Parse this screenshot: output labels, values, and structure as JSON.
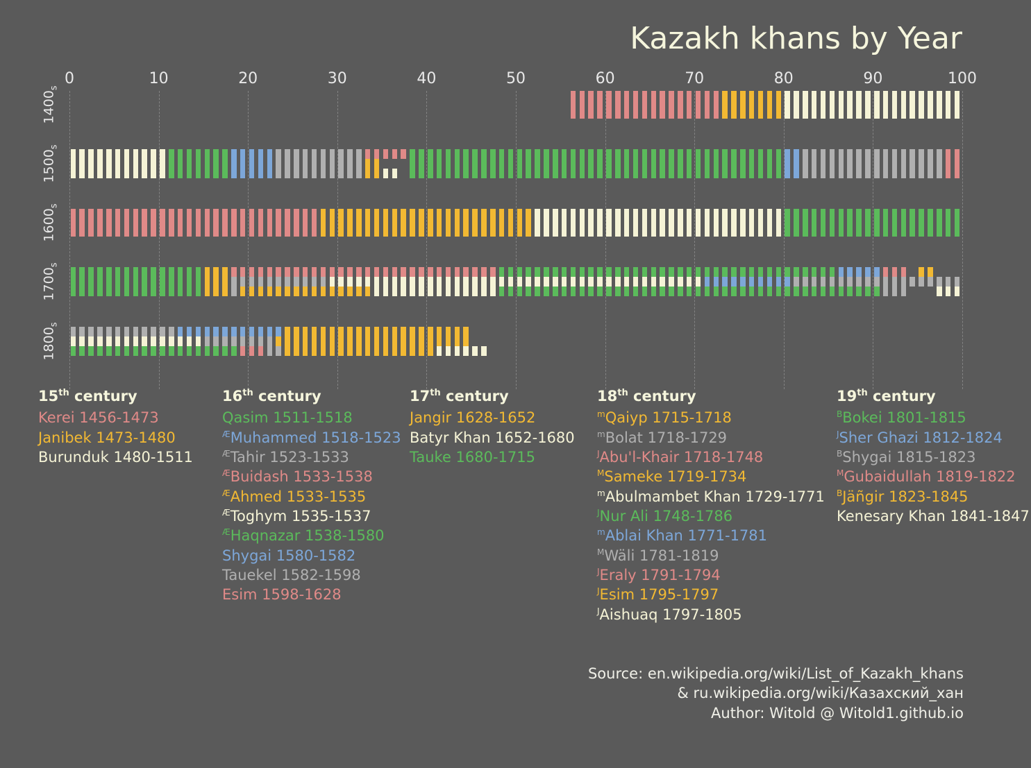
{
  "title": "Kazakh khans by Year",
  "background_color": "#5a5a5a",
  "text_color": "#f5f5dc",
  "colors": {
    "red": "#e08a88",
    "yellow": "#f2b933",
    "cream": "#f5f3d6",
    "green": "#5bbb5b",
    "blue": "#7da7d9",
    "gray": "#b0b0b0"
  },
  "x_axis": {
    "ticks": [
      0,
      10,
      20,
      30,
      40,
      50,
      60,
      70,
      80,
      90,
      100
    ],
    "xlim": [
      0,
      100
    ],
    "fontsize": 22,
    "grid_color": "#b5b5b5",
    "grid_dash": true
  },
  "rows": [
    {
      "label": "1400",
      "sub": "s",
      "tracks": [
        [
          {
            "start": 56,
            "end": 73,
            "color": "red"
          },
          {
            "start": 73,
            "end": 80,
            "color": "yellow"
          },
          {
            "start": 80,
            "end": 100,
            "color": "cream"
          }
        ]
      ]
    },
    {
      "label": "1500",
      "sub": "s",
      "tracks": [
        [
          {
            "start": 0,
            "end": 11,
            "color": "cream"
          },
          {
            "start": 11,
            "end": 18,
            "color": "green"
          },
          {
            "start": 18,
            "end": 23,
            "color": "blue"
          },
          {
            "start": 23,
            "end": 33,
            "color": "gray"
          },
          {
            "start": 33,
            "end": 35,
            "color": "yellow"
          },
          {
            "start": 33,
            "end": 38,
            "color": "red",
            "sub": "top"
          },
          {
            "start": 35,
            "end": 37,
            "color": "cream",
            "sub": "bot"
          },
          {
            "start": 38,
            "end": 80,
            "color": "green"
          },
          {
            "start": 80,
            "end": 82,
            "color": "blue"
          },
          {
            "start": 82,
            "end": 98,
            "color": "gray"
          },
          {
            "start": 98,
            "end": 100,
            "color": "red"
          }
        ]
      ]
    },
    {
      "label": "1600",
      "sub": "s",
      "tracks": [
        [
          {
            "start": 0,
            "end": 28,
            "color": "red"
          },
          {
            "start": 28,
            "end": 52,
            "color": "yellow"
          },
          {
            "start": 52,
            "end": 80,
            "color": "cream"
          },
          {
            "start": 80,
            "end": 100,
            "color": "green"
          }
        ]
      ]
    },
    {
      "label": "1700",
      "sub": "s",
      "tracks": [
        [
          {
            "start": 0,
            "end": 15,
            "color": "green"
          },
          {
            "start": 15,
            "end": 18,
            "color": "yellow"
          },
          {
            "start": 18,
            "end": 29,
            "color": "gray"
          },
          {
            "start": 29,
            "end": 71,
            "color": "cream",
            "sub": "mid"
          },
          {
            "start": 18,
            "end": 48,
            "color": "red",
            "sub": "top"
          },
          {
            "start": 19,
            "end": 34,
            "color": "yellow",
            "sub": "bot"
          },
          {
            "start": 34,
            "end": 48,
            "color": "cream",
            "sub": "bot"
          },
          {
            "start": 48,
            "end": 56,
            "color": "green",
            "sub": "top"
          },
          {
            "start": 48,
            "end": 56,
            "color": "green",
            "sub": "bot"
          },
          {
            "start": 56,
            "end": 79,
            "color": "green",
            "sub": "top"
          },
          {
            "start": 56,
            "end": 79,
            "color": "green",
            "sub": "bot"
          },
          {
            "start": 71,
            "end": 81,
            "color": "blue"
          },
          {
            "start": 79,
            "end": 86,
            "color": "green",
            "sub": "top"
          },
          {
            "start": 79,
            "end": 86,
            "color": "green",
            "sub": "bot"
          },
          {
            "start": 81,
            "end": 100,
            "color": "gray",
            "sub": "mid"
          },
          {
            "start": 86,
            "end": 91,
            "color": "blue",
            "sub": "top"
          },
          {
            "start": 86,
            "end": 91,
            "color": "green",
            "sub": "bot"
          },
          {
            "start": 91,
            "end": 94,
            "color": "red",
            "sub": "top"
          },
          {
            "start": 91,
            "end": 94,
            "color": "gray",
            "sub": "bot"
          },
          {
            "start": 95,
            "end": 97,
            "color": "yellow",
            "sub": "top"
          },
          {
            "start": 97,
            "end": 100,
            "color": "cream",
            "sub": "bot"
          }
        ]
      ]
    },
    {
      "label": "1800",
      "sub": "s",
      "tracks": [
        [
          {
            "start": 0,
            "end": 5,
            "color": "gray",
            "sub": "top"
          },
          {
            "start": 0,
            "end": 5,
            "color": "cream",
            "sub": "mid"
          },
          {
            "start": 0,
            "end": 5,
            "color": "green",
            "sub": "bot"
          },
          {
            "start": 1,
            "end": 15,
            "color": "gray",
            "sub": "top"
          },
          {
            "start": 1,
            "end": 15,
            "color": "green",
            "sub": "bot"
          },
          {
            "start": 5,
            "end": 19,
            "color": "cream",
            "sub": "mid"
          },
          {
            "start": 12,
            "end": 24,
            "color": "blue",
            "sub": "top"
          },
          {
            "start": 15,
            "end": 23,
            "color": "gray",
            "sub": "mid"
          },
          {
            "start": 15,
            "end": 19,
            "color": "green",
            "sub": "bot"
          },
          {
            "start": 19,
            "end": 22,
            "color": "red",
            "sub": "bot"
          },
          {
            "start": 22,
            "end": 24,
            "color": "gray",
            "sub": "bot"
          },
          {
            "start": 23,
            "end": 45,
            "color": "yellow"
          },
          {
            "start": 41,
            "end": 47,
            "color": "cream",
            "sub": "bot"
          }
        ]
      ]
    }
  ],
  "tick_style": {
    "tick_width": 7.5,
    "tick_gap": 3.2
  },
  "legend": {
    "font_size": 21,
    "columns": [
      {
        "title_pre": "15",
        "title_sup": "th",
        "title_post": " century",
        "items": [
          {
            "prefix": "",
            "text": "Kerei 1456-1473",
            "color": "red"
          },
          {
            "prefix": "",
            "text": "Janibek 1473-1480",
            "color": "yellow"
          },
          {
            "prefix": "",
            "text": "Burunduk 1480-1511",
            "color": "cream"
          }
        ]
      },
      {
        "title_pre": "16",
        "title_sup": "th",
        "title_post": " century",
        "items": [
          {
            "prefix": "",
            "text": "Qasim 1511-1518",
            "color": "green"
          },
          {
            "prefix": "Æ",
            "text": "Muhammed 1518-1523",
            "color": "blue"
          },
          {
            "prefix": "Æ",
            "text": "Tahir 1523-1533",
            "color": "gray"
          },
          {
            "prefix": "Æ",
            "text": "Buidash 1533-1538",
            "color": "red"
          },
          {
            "prefix": "Æ",
            "text": "Ahmed 1533-1535",
            "color": "yellow"
          },
          {
            "prefix": "Æ",
            "text": "Toghym 1535-1537",
            "color": "cream"
          },
          {
            "prefix": "Æ",
            "text": "Haqnazar 1538-1580",
            "color": "green"
          },
          {
            "prefix": "",
            "text": "Shygai 1580-1582",
            "color": "blue"
          },
          {
            "prefix": "",
            "text": "Tauekel 1582-1598",
            "color": "gray"
          },
          {
            "prefix": "",
            "text": "Esim 1598-1628",
            "color": "red"
          }
        ]
      },
      {
        "title_pre": "17",
        "title_sup": "th",
        "title_post": " century",
        "items": [
          {
            "prefix": "",
            "text": "Jangir 1628-1652",
            "color": "yellow"
          },
          {
            "prefix": "",
            "text": "Batyr Khan 1652-1680",
            "color": "cream"
          },
          {
            "prefix": "",
            "text": "Tauke 1680-1715",
            "color": "green"
          }
        ]
      },
      {
        "title_pre": "18",
        "title_sup": "th",
        "title_post": " century",
        "items": [
          {
            "prefix": "m",
            "text": "Qaiyp 1715-1718",
            "color": "yellow"
          },
          {
            "prefix": "m",
            "text": "Bolat 1718-1729",
            "color": "gray"
          },
          {
            "prefix": "J",
            "text": "Abu'l-Khair 1718-1748",
            "color": "red"
          },
          {
            "prefix": "M",
            "text": "Sameke 1719-1734",
            "color": "yellow"
          },
          {
            "prefix": "m",
            "text": "Abulmambet Khan 1729-1771",
            "color": "cream"
          },
          {
            "prefix": "J",
            "text": "Nur Ali 1748-1786",
            "color": "green"
          },
          {
            "prefix": "m",
            "text": "Ablai Khan 1771-1781",
            "color": "blue"
          },
          {
            "prefix": "M",
            "text": "Wäli 1781-1819",
            "color": "gray"
          },
          {
            "prefix": "J",
            "text": "Eraly 1791-1794",
            "color": "red"
          },
          {
            "prefix": "J",
            "text": "Esim 1795-1797",
            "color": "yellow"
          },
          {
            "prefix": "J",
            "text": "Aishuaq 1797-1805",
            "color": "cream"
          }
        ]
      },
      {
        "title_pre": "19",
        "title_sup": "th",
        "title_post": " century",
        "items": [
          {
            "prefix": "B",
            "text": "Bokei 1801-1815",
            "color": "green"
          },
          {
            "prefix": "J",
            "text": "Sher Ghazi 1812-1824",
            "color": "blue"
          },
          {
            "prefix": "B",
            "text": "Shygai 1815-1823",
            "color": "gray"
          },
          {
            "prefix": "M",
            "text": "Gubaidullah 1819-1822",
            "color": "red"
          },
          {
            "prefix": "B",
            "text": "Jäñgir 1823-1845",
            "color": "yellow"
          },
          {
            "prefix": "",
            "text": "Kenesary Khan 1841-1847",
            "color": "cream"
          }
        ]
      }
    ]
  },
  "footer": {
    "line1": "Source: en.wikipedia.org/wiki/List_of_Kazakh_khans",
    "line2": "& ru.wikipedia.org/wiki/Казахский_хан",
    "line3": "Author: Witold @ Witold1.github.io"
  },
  "row_label_fontsize": 19,
  "legend_title_weight": 700
}
